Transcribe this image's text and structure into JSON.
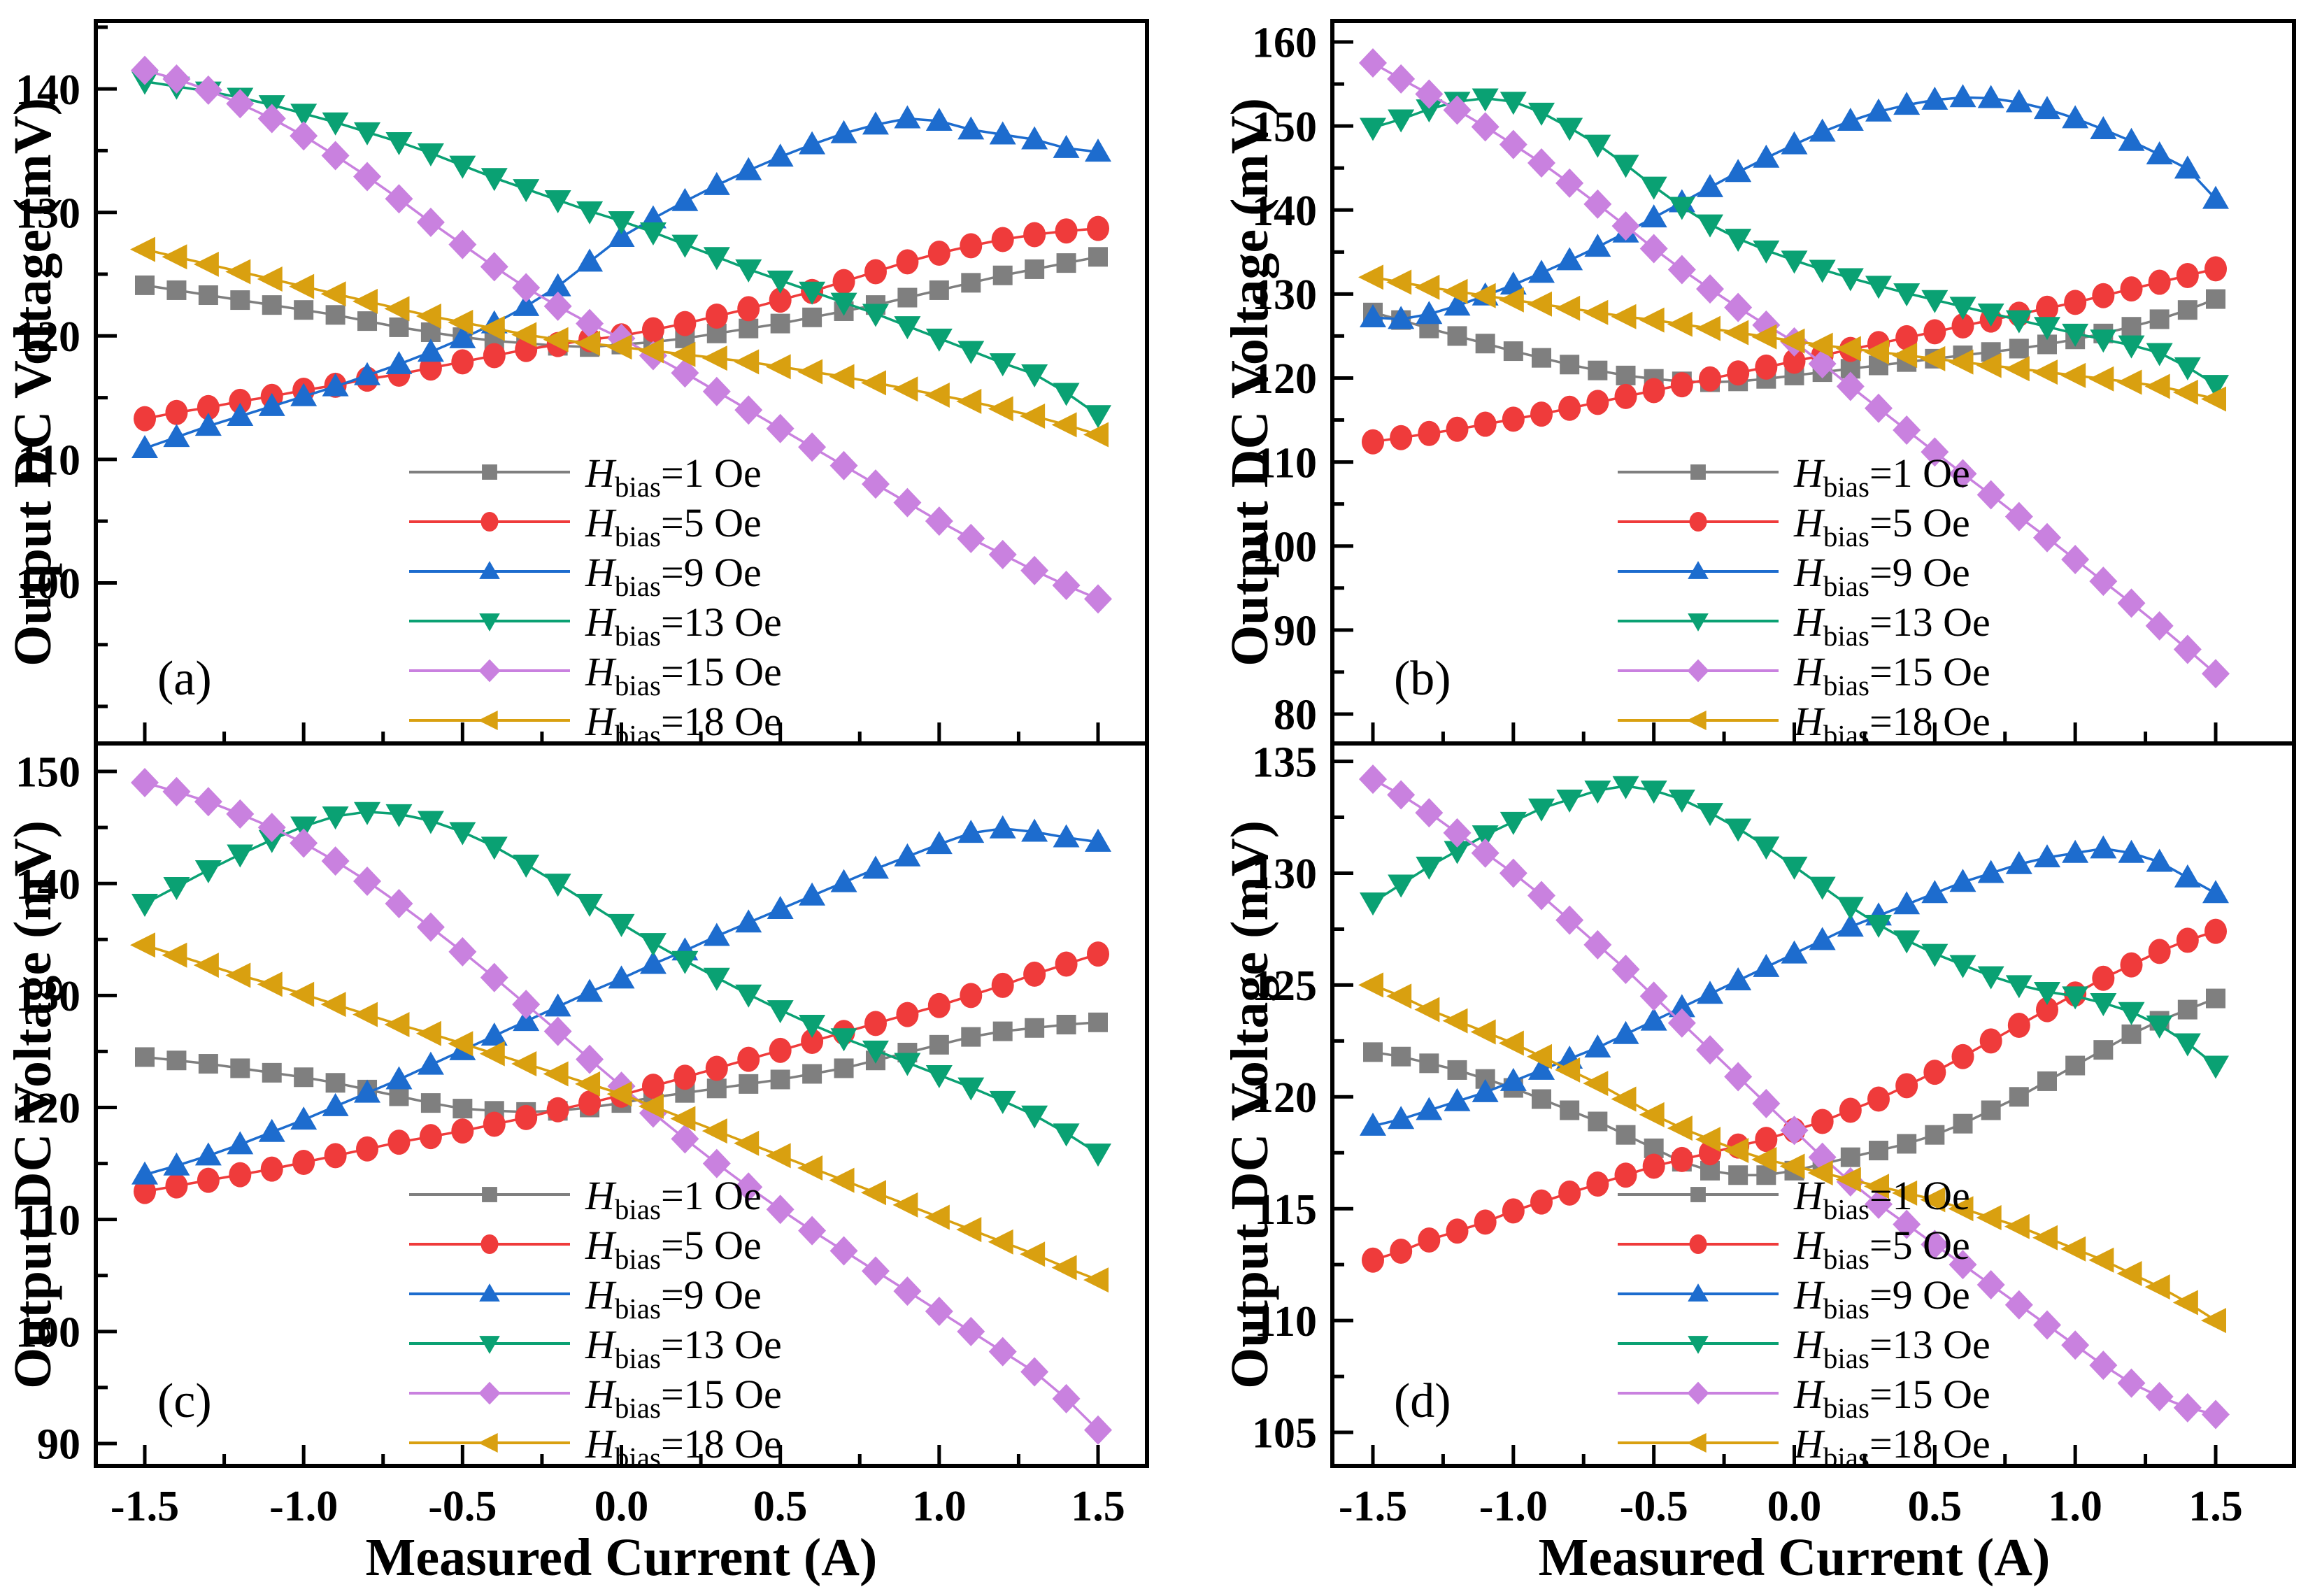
{
  "figure": {
    "x_axis_label": "Measured Current (A)",
    "y_axis_label": "Output DC Voltage (mV)"
  },
  "chart_data": {
    "type": "line",
    "xlabel": "Measured Current (A)",
    "ylabel": "Output DC Voltage (mV)",
    "x_ticks": [
      -1.5,
      -1.0,
      -0.5,
      0.0,
      0.5,
      1.0,
      1.5
    ],
    "x_minor_ticks": [
      -1.25,
      -0.75,
      -0.25,
      0.25,
      0.75,
      1.25
    ],
    "x": [
      -1.5,
      -1.4,
      -1.3,
      -1.2,
      -1.1,
      -1.0,
      -0.9,
      -0.8,
      -0.7,
      -0.6,
      -0.5,
      -0.4,
      -0.3,
      -0.2,
      -0.1,
      0.0,
      0.1,
      0.2,
      0.3,
      0.4,
      0.5,
      0.6,
      0.7,
      0.8,
      0.9,
      1.0,
      1.1,
      1.2,
      1.3,
      1.4,
      1.5
    ],
    "series_meta": [
      {
        "key": "hbias-1oe",
        "legend_prefix": "H",
        "legend_sub": "bias",
        "legend_rest": "=1 Oe",
        "color": "#7F7F7F",
        "marker": "square"
      },
      {
        "key": "hbias-5oe",
        "legend_prefix": "H",
        "legend_sub": "bias",
        "legend_rest": "=5 Oe",
        "color": "#EF3B3B",
        "marker": "circle"
      },
      {
        "key": "hbias-9oe",
        "legend_prefix": "H",
        "legend_sub": "bias",
        "legend_rest": "=9 Oe",
        "color": "#1D6CCE",
        "marker": "triangle-up"
      },
      {
        "key": "hbias-13oe",
        "legend_prefix": "H",
        "legend_sub": "bias",
        "legend_rest": "=13 Oe",
        "color": "#0AA173",
        "marker": "triangle-down"
      },
      {
        "key": "hbias-15oe",
        "legend_prefix": "H",
        "legend_sub": "bias",
        "legend_rest": "=15 Oe",
        "color": "#C981DF",
        "marker": "diamond"
      },
      {
        "key": "hbias-18oe",
        "legend_prefix": "H",
        "legend_sub": "bias",
        "legend_rest": "=18 Oe",
        "color": "#D9A010",
        "marker": "triangle-left"
      }
    ],
    "panels": [
      {
        "id": "a",
        "panel_label": "(a)",
        "ylim": [
          87,
          145.5
        ],
        "yticks": [
          100,
          110,
          120,
          130,
          140
        ],
        "yminors": [
          90,
          95,
          105,
          115,
          125,
          135,
          145
        ],
        "values": [
          [
            124.1,
            123.7,
            123.3,
            122.9,
            122.5,
            122.1,
            121.7,
            121.2,
            120.7,
            120.3,
            119.9,
            119.6,
            119.4,
            119.2,
            119.1,
            119.3,
            119.5,
            119.8,
            120.2,
            120.6,
            121.0,
            121.5,
            122.0,
            122.5,
            123.1,
            123.7,
            124.3,
            124.9,
            125.4,
            125.9,
            126.4
          ],
          [
            113.3,
            113.8,
            114.2,
            114.7,
            115.1,
            115.6,
            116.0,
            116.5,
            116.9,
            117.4,
            117.9,
            118.4,
            118.9,
            119.3,
            119.7,
            120.0,
            120.5,
            121.0,
            121.6,
            122.2,
            122.9,
            123.6,
            124.4,
            125.2,
            126.0,
            126.7,
            127.3,
            127.8,
            128.2,
            128.5,
            128.7
          ],
          [
            110.9,
            111.8,
            112.7,
            113.5,
            114.3,
            115.1,
            115.9,
            116.8,
            117.7,
            118.7,
            119.8,
            121.0,
            122.4,
            124.0,
            126.0,
            128.0,
            129.5,
            130.9,
            132.2,
            133.4,
            134.5,
            135.5,
            136.4,
            137.1,
            137.6,
            137.4,
            136.7,
            136.3,
            135.9,
            135.2,
            134.9
          ],
          [
            140.6,
            140.2,
            139.8,
            139.3,
            138.7,
            138.0,
            137.3,
            136.5,
            135.7,
            134.8,
            133.8,
            132.8,
            131.9,
            131.0,
            130.1,
            129.3,
            128.4,
            127.4,
            126.4,
            125.4,
            124.5,
            123.6,
            122.7,
            121.8,
            120.8,
            119.8,
            118.8,
            117.8,
            116.9,
            115.4,
            113.6
          ],
          [
            141.5,
            140.8,
            139.9,
            138.8,
            137.6,
            136.2,
            134.6,
            132.9,
            131.1,
            129.2,
            127.4,
            125.6,
            123.9,
            122.4,
            121.0,
            119.8,
            118.4,
            117.0,
            115.5,
            114.0,
            112.5,
            111.0,
            109.5,
            108.0,
            106.5,
            105.0,
            103.6,
            102.3,
            101.0,
            99.8,
            98.7
          ],
          [
            127.0,
            126.4,
            125.8,
            125.2,
            124.6,
            124.0,
            123.4,
            122.8,
            122.2,
            121.6,
            121.1,
            120.6,
            120.1,
            119.7,
            119.4,
            119.1,
            118.8,
            118.5,
            118.2,
            117.9,
            117.5,
            117.1,
            116.7,
            116.2,
            115.7,
            115.2,
            114.7,
            114.1,
            113.5,
            112.8,
            112.0
          ]
        ]
      },
      {
        "id": "b",
        "panel_label": "(b)",
        "ylim": [
          76.5,
          162.5
        ],
        "yticks": [
          80,
          90,
          100,
          110,
          120,
          130,
          140,
          150,
          160
        ],
        "yminors": [
          85,
          95,
          105,
          115,
          125,
          135,
          145,
          155
        ],
        "values": [
          [
            127.8,
            126.9,
            125.9,
            125.0,
            124.1,
            123.2,
            122.4,
            121.6,
            120.9,
            120.3,
            119.9,
            119.6,
            119.5,
            119.6,
            119.9,
            120.3,
            120.7,
            121.1,
            121.5,
            121.9,
            122.3,
            122.7,
            123.1,
            123.5,
            124.0,
            124.6,
            125.3,
            126.1,
            127.0,
            128.1,
            129.4
          ],
          [
            112.4,
            112.9,
            113.4,
            113.9,
            114.5,
            115.1,
            115.7,
            116.4,
            117.1,
            117.8,
            118.5,
            119.2,
            119.9,
            120.6,
            121.3,
            122.0,
            122.7,
            123.4,
            124.1,
            124.8,
            125.5,
            126.2,
            126.9,
            127.6,
            128.3,
            129.0,
            129.8,
            130.6,
            131.4,
            132.2,
            133.0
          ],
          [
            127.2,
            127.0,
            127.6,
            128.6,
            129.8,
            131.1,
            132.5,
            134.0,
            135.6,
            137.3,
            139.1,
            140.9,
            142.7,
            144.5,
            146.2,
            147.8,
            149.3,
            150.6,
            151.7,
            152.5,
            153.1,
            153.4,
            153.3,
            152.8,
            152.0,
            150.9,
            149.6,
            148.2,
            146.6,
            144.9,
            141.3
          ],
          [
            149.8,
            150.8,
            152.0,
            152.9,
            153.3,
            152.9,
            151.6,
            149.8,
            147.8,
            145.4,
            142.8,
            140.4,
            138.3,
            136.6,
            135.2,
            134.0,
            132.9,
            131.9,
            131.0,
            130.1,
            129.3,
            128.5,
            127.7,
            126.9,
            126.1,
            125.3,
            124.6,
            123.9,
            123.0,
            121.3,
            119.2
          ],
          [
            157.5,
            155.6,
            153.8,
            151.9,
            149.9,
            147.8,
            145.6,
            143.2,
            140.7,
            138.1,
            135.4,
            132.9,
            130.6,
            128.4,
            126.3,
            124.3,
            121.7,
            119.0,
            116.4,
            113.8,
            111.2,
            108.6,
            106.1,
            103.5,
            101.0,
            98.4,
            95.8,
            93.2,
            90.5,
            87.7,
            84.8
          ],
          [
            132.0,
            131.4,
            130.8,
            130.3,
            129.8,
            129.3,
            128.8,
            128.3,
            127.8,
            127.3,
            126.9,
            126.4,
            125.9,
            125.4,
            124.9,
            124.4,
            123.9,
            123.5,
            123.1,
            122.7,
            122.3,
            121.9,
            121.5,
            121.1,
            120.7,
            120.3,
            119.9,
            119.5,
            119.0,
            118.3,
            117.5
          ]
        ]
      },
      {
        "id": "c",
        "panel_label": "(c)",
        "ylim": [
          88,
          152.5
        ],
        "yticks": [
          90,
          100,
          110,
          120,
          130,
          140,
          150
        ],
        "yminors": [
          95,
          105,
          115,
          125,
          135,
          145
        ],
        "values": [
          [
            124.5,
            124.2,
            123.9,
            123.5,
            123.1,
            122.7,
            122.2,
            121.6,
            121.0,
            120.4,
            119.9,
            119.7,
            119.6,
            119.7,
            120.0,
            120.4,
            120.9,
            121.3,
            121.7,
            122.1,
            122.5,
            123.0,
            123.5,
            124.2,
            124.9,
            125.6,
            126.3,
            126.8,
            127.1,
            127.4,
            127.6
          ],
          [
            112.5,
            113.0,
            113.5,
            114.0,
            114.5,
            115.1,
            115.7,
            116.3,
            116.9,
            117.4,
            117.9,
            118.5,
            119.1,
            119.8,
            120.4,
            121.1,
            121.9,
            122.7,
            123.5,
            124.3,
            125.1,
            125.9,
            126.7,
            127.5,
            128.3,
            129.1,
            130.0,
            130.9,
            131.9,
            132.8,
            133.7
          ],
          [
            114.0,
            114.8,
            115.7,
            116.7,
            117.8,
            118.9,
            120.1,
            121.3,
            122.5,
            123.8,
            125.1,
            126.4,
            127.7,
            129.0,
            130.3,
            131.5,
            132.8,
            134.0,
            135.3,
            136.5,
            137.7,
            138.9,
            140.1,
            141.3,
            142.4,
            143.5,
            144.5,
            144.9,
            144.6,
            144.1,
            143.7
          ],
          [
            138.2,
            139.7,
            141.2,
            142.6,
            143.9,
            145.1,
            146.0,
            146.4,
            146.2,
            145.6,
            144.6,
            143.3,
            141.7,
            140.0,
            138.2,
            136.4,
            134.7,
            133.1,
            131.6,
            130.1,
            128.7,
            127.4,
            126.2,
            125.1,
            124.0,
            122.9,
            121.8,
            120.6,
            119.3,
            117.7,
            115.9
          ],
          [
            149.0,
            148.2,
            147.3,
            146.2,
            145.0,
            143.6,
            142.0,
            140.2,
            138.2,
            136.1,
            133.9,
            131.6,
            129.2,
            126.8,
            124.3,
            121.9,
            119.5,
            117.2,
            115.0,
            112.9,
            110.9,
            109.0,
            107.2,
            105.4,
            103.6,
            101.8,
            100.0,
            98.2,
            96.4,
            94.0,
            91.2
          ],
          [
            134.5,
            133.6,
            132.7,
            131.8,
            131.0,
            130.1,
            129.2,
            128.3,
            127.4,
            126.6,
            125.7,
            124.8,
            123.9,
            123.0,
            122.1,
            121.2,
            120.1,
            119.0,
            117.9,
            116.8,
            115.7,
            114.6,
            113.5,
            112.4,
            111.3,
            110.2,
            109.1,
            108.0,
            106.9,
            105.7,
            104.6
          ]
        ]
      },
      {
        "id": "d",
        "panel_label": "(d)",
        "ylim": [
          103.5,
          135.8
        ],
        "yticks": [
          105,
          110,
          115,
          120,
          125,
          130,
          135
        ],
        "yminors": [
          107.5,
          112.5,
          117.5,
          122.5,
          127.5,
          132.5
        ],
        "values": [
          [
            122.0,
            121.8,
            121.5,
            121.2,
            120.8,
            120.4,
            119.9,
            119.4,
            118.9,
            118.3,
            117.7,
            117.1,
            116.7,
            116.5,
            116.5,
            116.7,
            117.0,
            117.3,
            117.6,
            117.9,
            118.3,
            118.8,
            119.4,
            120.0,
            120.7,
            121.4,
            122.1,
            122.8,
            123.4,
            123.9,
            124.4
          ],
          [
            112.7,
            113.1,
            113.6,
            114.0,
            114.4,
            114.9,
            115.3,
            115.7,
            116.1,
            116.5,
            116.9,
            117.2,
            117.5,
            117.8,
            118.1,
            118.5,
            118.9,
            119.4,
            119.9,
            120.5,
            121.1,
            121.8,
            122.5,
            123.2,
            123.9,
            124.6,
            125.3,
            125.9,
            126.5,
            127.0,
            127.4
          ],
          [
            118.7,
            119.0,
            119.4,
            119.8,
            120.2,
            120.7,
            121.2,
            121.7,
            122.2,
            122.8,
            123.4,
            124.0,
            124.6,
            125.2,
            125.8,
            126.4,
            127.0,
            127.6,
            128.1,
            128.6,
            129.1,
            129.6,
            130.0,
            130.4,
            130.7,
            130.9,
            131.1,
            130.9,
            130.5,
            129.8,
            129.1
          ],
          [
            128.7,
            129.5,
            130.3,
            131.0,
            131.7,
            132.3,
            132.9,
            133.3,
            133.7,
            133.9,
            133.7,
            133.3,
            132.7,
            132.0,
            131.2,
            130.3,
            129.4,
            128.5,
            127.7,
            127.0,
            126.4,
            125.9,
            125.4,
            125.0,
            124.7,
            124.5,
            124.2,
            123.8,
            123.2,
            122.4,
            121.4
          ],
          [
            134.2,
            133.5,
            132.7,
            131.8,
            130.9,
            130.0,
            129.0,
            127.9,
            126.8,
            125.7,
            124.5,
            123.3,
            122.1,
            120.9,
            119.7,
            118.5,
            117.3,
            116.2,
            115.2,
            114.3,
            113.4,
            112.5,
            111.6,
            110.7,
            109.8,
            108.9,
            108.0,
            107.2,
            106.6,
            106.1,
            105.8
          ],
          [
            125.0,
            124.5,
            123.9,
            123.4,
            122.9,
            122.4,
            121.8,
            121.2,
            120.6,
            119.9,
            119.2,
            118.6,
            118.1,
            117.6,
            117.2,
            116.9,
            116.6,
            116.3,
            116.0,
            115.7,
            115.4,
            115.0,
            114.6,
            114.2,
            113.7,
            113.2,
            112.7,
            112.1,
            111.5,
            110.8,
            110.0
          ]
        ]
      }
    ]
  }
}
